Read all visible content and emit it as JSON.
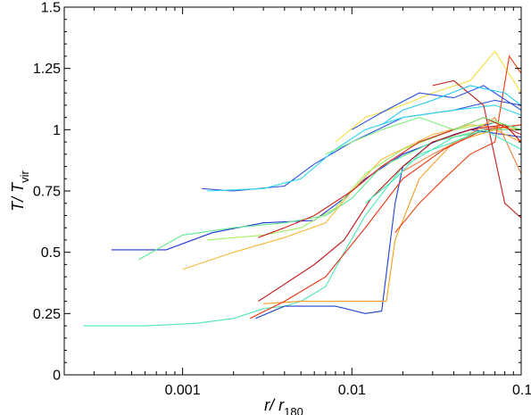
{
  "chart_data": {
    "type": "line",
    "title": "",
    "x_scale": "log",
    "xlim": [
      0.0002,
      0.1
    ],
    "ylim": [
      0,
      1.5
    ],
    "xticks": [
      0.001,
      0.01,
      0.1
    ],
    "xtick_labels": [
      "0.001",
      "0.01",
      "0.1"
    ],
    "yticks": [
      0,
      0.25,
      0.5,
      0.75,
      1,
      1.25,
      1.5
    ],
    "ytick_labels": [
      "0",
      "0.25",
      "0.5",
      "0.75",
      "1",
      "1.25",
      "1.5"
    ],
    "xlabel": {
      "main": "r/ r",
      "sub": "180"
    },
    "ylabel": {
      "main": "T/ T",
      "sub": "vir"
    },
    "grid": false,
    "legend": "none",
    "series": [
      {
        "color": "#4fe8b0",
        "x": [
          0.00026,
          0.0006,
          0.0012,
          0.002,
          0.003,
          0.004,
          0.005,
          0.007,
          0.009,
          0.012,
          0.02,
          0.04,
          0.07,
          0.1
        ],
        "y": [
          0.2,
          0.2,
          0.21,
          0.23,
          0.27,
          0.28,
          0.3,
          0.36,
          0.5,
          0.65,
          0.85,
          0.97,
          1.0,
          1.02
        ]
      },
      {
        "color": "#2030d8",
        "x": [
          0.00038,
          0.0008,
          0.0015,
          0.003,
          0.006,
          0.009,
          0.012,
          0.02,
          0.04,
          0.07,
          0.1
        ],
        "y": [
          0.51,
          0.51,
          0.58,
          0.62,
          0.63,
          0.72,
          0.8,
          0.9,
          0.98,
          1.03,
          1.0
        ]
      },
      {
        "color": "#60e890",
        "x": [
          0.00055,
          0.001,
          0.002,
          0.004,
          0.007,
          0.01,
          0.015,
          0.03,
          0.06,
          0.1
        ],
        "y": [
          0.47,
          0.57,
          0.6,
          0.62,
          0.65,
          0.72,
          0.85,
          0.95,
          1.0,
          1.0
        ]
      },
      {
        "color": "#3050e0",
        "x": [
          0.0013,
          0.002,
          0.004,
          0.006,
          0.01,
          0.02,
          0.04,
          0.07,
          0.1
        ],
        "y": [
          0.76,
          0.75,
          0.77,
          0.86,
          0.95,
          1.05,
          1.08,
          1.12,
          1.1
        ]
      },
      {
        "color": "#30d8e8",
        "x": [
          0.0014,
          0.003,
          0.005,
          0.008,
          0.012,
          0.02,
          0.04,
          0.07,
          0.1
        ],
        "y": [
          0.75,
          0.76,
          0.8,
          0.92,
          1.0,
          1.05,
          1.08,
          1.1,
          1.06
        ]
      },
      {
        "color": "#f8b838",
        "x": [
          0.001,
          0.002,
          0.004,
          0.007,
          0.01,
          0.015,
          0.03,
          0.05,
          0.1
        ],
        "y": [
          0.43,
          0.5,
          0.56,
          0.62,
          0.75,
          0.88,
          0.98,
          1.02,
          1.0
        ]
      },
      {
        "color": "#a0f060",
        "x": [
          0.0014,
          0.003,
          0.005,
          0.008,
          0.012,
          0.02,
          0.04,
          0.07,
          0.1
        ],
        "y": [
          0.55,
          0.57,
          0.6,
          0.68,
          0.82,
          0.92,
          1.0,
          1.03,
          1.0
        ]
      },
      {
        "color": "#2040d0",
        "x": [
          0.0027,
          0.004,
          0.006,
          0.008,
          0.012,
          0.015,
          0.018,
          0.02,
          0.03,
          0.05,
          0.1
        ],
        "y": [
          0.23,
          0.28,
          0.28,
          0.28,
          0.25,
          0.26,
          0.7,
          0.85,
          0.95,
          1.0,
          0.97
        ]
      },
      {
        "color": "#f0a020",
        "x": [
          0.003,
          0.005,
          0.008,
          0.012,
          0.016,
          0.018,
          0.025,
          0.04,
          0.07,
          0.1
        ],
        "y": [
          0.29,
          0.3,
          0.3,
          0.3,
          0.3,
          0.55,
          0.8,
          0.95,
          1.0,
          0.95
        ]
      },
      {
        "color": "#c01010",
        "x": [
          0.0028,
          0.004,
          0.006,
          0.009,
          0.013,
          0.02,
          0.03,
          0.05,
          0.08,
          0.1
        ],
        "y": [
          0.3,
          0.37,
          0.45,
          0.55,
          0.72,
          0.85,
          0.95,
          1.0,
          1.02,
          0.95
        ]
      },
      {
        "color": "#d02020",
        "x": [
          0.0028,
          0.004,
          0.006,
          0.01,
          0.015,
          0.025,
          0.04,
          0.06,
          0.1
        ],
        "y": [
          0.56,
          0.6,
          0.65,
          0.75,
          0.85,
          0.95,
          1.0,
          1.05,
          0.98
        ]
      },
      {
        "color": "#e83010",
        "x": [
          0.0025,
          0.004,
          0.007,
          0.012,
          0.02,
          0.035,
          0.06,
          0.1
        ],
        "y": [
          0.23,
          0.3,
          0.4,
          0.6,
          0.8,
          0.92,
          1.0,
          1.02
        ]
      },
      {
        "color": "#f0e040",
        "x": [
          0.008,
          0.012,
          0.02,
          0.03,
          0.05,
          0.07,
          0.1
        ],
        "y": [
          0.95,
          1.05,
          1.1,
          1.15,
          1.2,
          1.32,
          1.15
        ]
      },
      {
        "color": "#e84010",
        "x": [
          0.018,
          0.025,
          0.035,
          0.05,
          0.07,
          0.085,
          0.1
        ],
        "y": [
          0.58,
          0.7,
          0.8,
          0.9,
          0.95,
          1.3,
          1.23
        ]
      },
      {
        "color": "#c02020",
        "x": [
          0.03,
          0.04,
          0.06,
          0.08,
          0.1
        ],
        "y": [
          1.18,
          1.2,
          1.1,
          0.7,
          0.64
        ]
      },
      {
        "color": "#2850e0",
        "x": [
          0.01,
          0.015,
          0.025,
          0.04,
          0.06,
          0.1
        ],
        "y": [
          1.0,
          1.07,
          1.15,
          1.13,
          1.18,
          1.08
        ]
      },
      {
        "color": "#f08040",
        "x": [
          0.02,
          0.03,
          0.05,
          0.07,
          0.1
        ],
        "y": [
          0.83,
          0.9,
          0.98,
          1.05,
          0.82
        ]
      },
      {
        "color": "#40f0c0",
        "x": [
          0.012,
          0.018,
          0.025,
          0.04,
          0.06,
          0.1
        ],
        "y": [
          0.7,
          0.8,
          0.9,
          0.95,
          1.0,
          0.92
        ]
      },
      {
        "color": "#20c8f0",
        "x": [
          0.015,
          0.02,
          0.03,
          0.05,
          0.08,
          0.1
        ],
        "y": [
          1.02,
          1.08,
          1.12,
          1.18,
          1.15,
          1.1
        ]
      },
      {
        "color": "#80f080",
        "x": [
          0.007,
          0.01,
          0.015,
          0.025,
          0.04,
          0.06,
          0.1
        ],
        "y": [
          0.9,
          0.95,
          1.0,
          1.05,
          1.0,
          1.05,
          1.0
        ]
      }
    ]
  }
}
